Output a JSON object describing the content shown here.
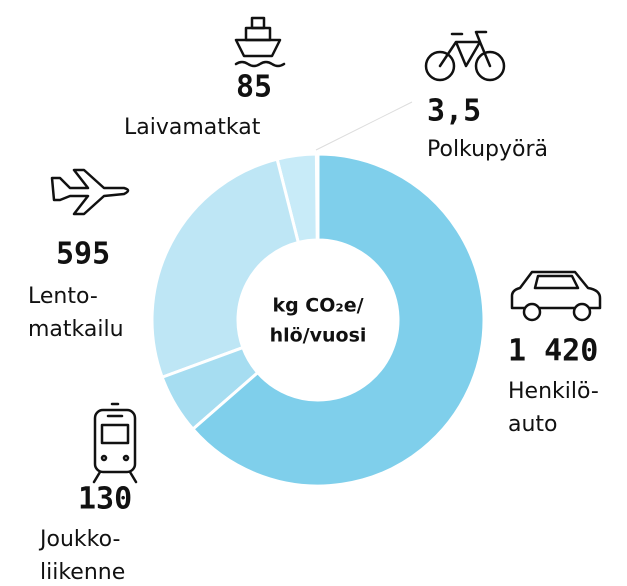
{
  "chart_data": {
    "type": "pie",
    "title": [
      "kg CO₂e/",
      "hlö/vuosi"
    ],
    "categories": [
      [
        "Henkilö-",
        "auto"
      ],
      [
        "Joukko-",
        "liikenne"
      ],
      [
        "Lento-",
        "matkailu"
      ],
      [
        "Laivamatkat"
      ],
      [
        "Polkupyörä"
      ]
    ],
    "values": [
      1420,
      130,
      595,
      85,
      3.5
    ],
    "value_labels": [
      "1 420",
      "130",
      "595",
      "85",
      "3,5"
    ],
    "colors": [
      "#7fcfeb",
      "#a6ddf1",
      "#bee6f5",
      "#c8ebf8",
      "#c8ebf8"
    ]
  }
}
